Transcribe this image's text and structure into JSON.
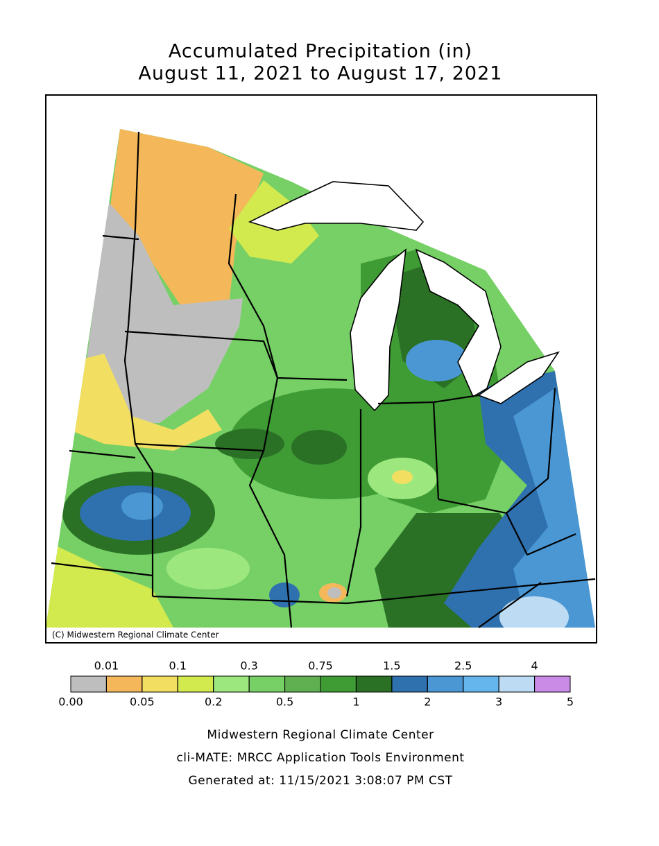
{
  "title": [
    "Accumulated Precipitation (in)",
    "August 11, 2021 to August 17, 2021"
  ],
  "credit": "(C) Midwestern Regional Climate Center",
  "legend": {
    "bins": [
      {
        "value": 0,
        "label": "0.00"
      },
      0.01,
      0.05,
      0.1,
      0.2,
      0.3,
      0.5,
      0.75,
      1,
      1.5,
      2,
      2.5,
      3,
      4,
      5
    ],
    "colors": [
      "#bebebe",
      "#f4b85a",
      "#f2df62",
      "#d3ea4e",
      "#9ce87f",
      "#76d066",
      "#60b052",
      "#3f9c35",
      "#2a7125",
      "#2f70ae",
      "#4a97d4",
      "#66b6ee",
      "#bddcf4",
      "#c98be6"
    ]
  },
  "footer": [
    "Midwestern Regional Climate Center",
    "cli-MATE: MRCC Application Tools Environment",
    "Generated at: 11/15/2021 3:08:07 PM CST"
  ]
}
